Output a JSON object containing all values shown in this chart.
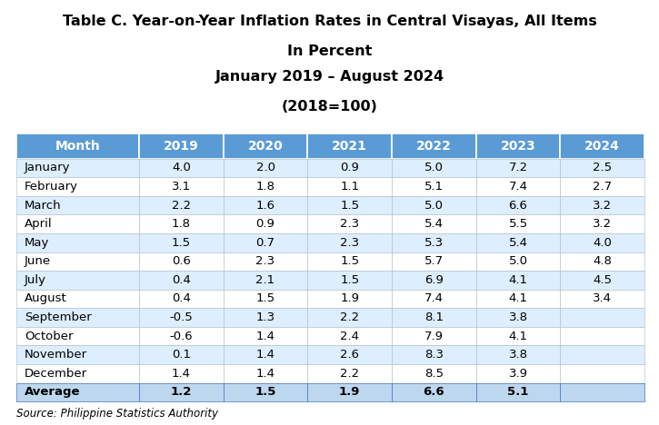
{
  "title_line1": "Table C. Year-on-Year Inflation Rates in Central Visayas, All Items",
  "title_line2": "In Percent",
  "title_line3": "January 2019 – August 2024",
  "title_line4": "(2018=100)",
  "source": "Source: Philippine Statistics Authority",
  "columns": [
    "Month",
    "2019",
    "2020",
    "2021",
    "2022",
    "2023",
    "2024"
  ],
  "rows": [
    [
      "January",
      "4.0",
      "2.0",
      "0.9",
      "5.0",
      "7.2",
      "2.5"
    ],
    [
      "February",
      "3.1",
      "1.8",
      "1.1",
      "5.1",
      "7.4",
      "2.7"
    ],
    [
      "March",
      "2.2",
      "1.6",
      "1.5",
      "5.0",
      "6.6",
      "3.2"
    ],
    [
      "April",
      "1.8",
      "0.9",
      "2.3",
      "5.4",
      "5.5",
      "3.2"
    ],
    [
      "May",
      "1.5",
      "0.7",
      "2.3",
      "5.3",
      "5.4",
      "4.0"
    ],
    [
      "June",
      "0.6",
      "2.3",
      "1.5",
      "5.7",
      "5.0",
      "4.8"
    ],
    [
      "July",
      "0.4",
      "2.1",
      "1.5",
      "6.9",
      "4.1",
      "4.5"
    ],
    [
      "August",
      "0.4",
      "1.5",
      "1.9",
      "7.4",
      "4.1",
      "3.4"
    ],
    [
      "September",
      "-0.5",
      "1.3",
      "2.2",
      "8.1",
      "3.8",
      ""
    ],
    [
      "October",
      "-0.6",
      "1.4",
      "2.4",
      "7.9",
      "4.1",
      ""
    ],
    [
      "November",
      "0.1",
      "1.4",
      "2.6",
      "8.3",
      "3.8",
      ""
    ],
    [
      "December",
      "1.4",
      "1.4",
      "2.2",
      "8.5",
      "3.9",
      ""
    ]
  ],
  "average_row": [
    "Average",
    "1.2",
    "1.5",
    "1.9",
    "6.6",
    "5.1",
    ""
  ],
  "header_bg": "#5B9BD5",
  "header_text": "#FFFFFF",
  "row_even_bg": "#DDEEFF",
  "row_odd_bg": "#FFFFFF",
  "avg_row_bg": "#BDD7EE",
  "border_color": "#4472C4",
  "title_fontsize": 11.5,
  "header_fontsize": 10,
  "cell_fontsize": 9.5,
  "source_fontsize": 8.5
}
